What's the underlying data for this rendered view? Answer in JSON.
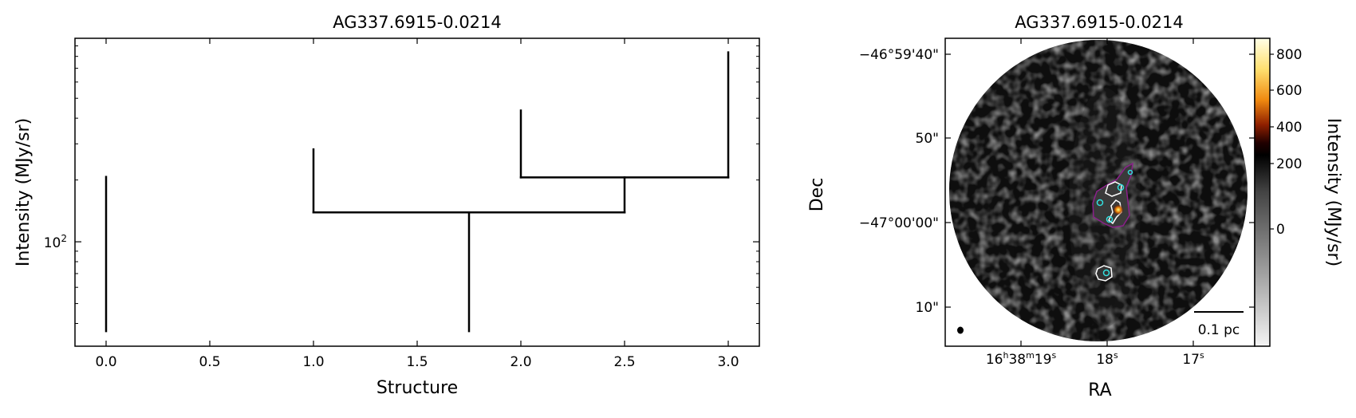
{
  "chart_data": [
    {
      "type": "dendrogram",
      "title": "AG337.6915-0.0214",
      "xlabel": "Structure",
      "ylabel": "Intensity (MJy/sr)",
      "xlim": [
        -0.15,
        3.15
      ],
      "ylim": [
        31,
        980
      ],
      "yscale": "log",
      "xticks": [
        "0.0",
        "0.5",
        "1.0",
        "1.5",
        "2.0",
        "2.5",
        "3.0"
      ],
      "yticks": [
        {
          "value": 100,
          "label": "10",
          "exp": "2"
        }
      ],
      "grid": false,
      "line_color": "#000000",
      "segments": [
        {
          "name": "leaf-0",
          "x": [
            0,
            0
          ],
          "y": [
            36.7,
            207
          ]
        },
        {
          "name": "leaf-1",
          "x": [
            1,
            1
          ],
          "y": [
            139,
            282
          ]
        },
        {
          "name": "leaf-2",
          "x": [
            2,
            2
          ],
          "y": [
            206,
            436
          ]
        },
        {
          "name": "leaf-3",
          "x": [
            3,
            3
          ],
          "y": [
            206,
            837
          ]
        },
        {
          "name": "trunk",
          "x": [
            1.75,
            1.75
          ],
          "y": [
            36.7,
            139
          ]
        },
        {
          "name": "branch-1-2.5",
          "x": [
            1,
            2.5
          ],
          "y": [
            139,
            139
          ]
        },
        {
          "name": "branch-stem-2.5",
          "x": [
            2.5,
            2.5
          ],
          "y": [
            139,
            206
          ]
        },
        {
          "name": "branch-2-3",
          "x": [
            2,
            3
          ],
          "y": [
            206,
            206
          ]
        }
      ]
    },
    {
      "type": "image",
      "title": "AG337.6915-0.0214",
      "xlabel": "RA",
      "ylabel": "Dec",
      "xticks": [
        {
          "main": "16",
          "s1": "h",
          "m": "38",
          "s2": "m",
          "sec": "19",
          "s3": "s"
        },
        {
          "sec": "18",
          "s3": "s"
        },
        {
          "sec": "17",
          "s3": "s"
        }
      ],
      "yticks": [
        "−46°59'40\"",
        "50\"",
        "−47°00'00\"",
        "10\""
      ],
      "colorbar": {
        "label": "Intensity (MJy/sr)",
        "ticks": [
          "800",
          "600",
          "400",
          "200",
          "0"
        ],
        "colormap": "gray-to-afmhot"
      },
      "scalebar_label": "0.1 pc",
      "contour_colors": {
        "outer": "#7a1a7a",
        "inner": "#ffffff",
        "markers": "#33e0e0"
      }
    }
  ]
}
